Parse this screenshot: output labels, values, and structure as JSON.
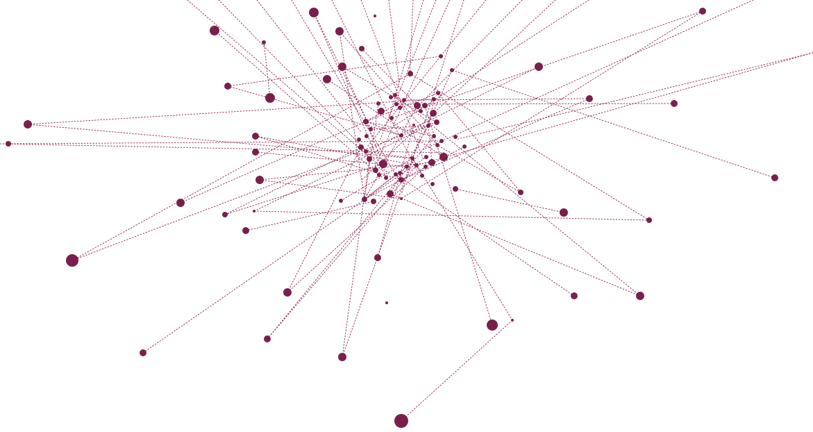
{
  "diagram": {
    "type": "network-graph",
    "style": "dotted radial links",
    "colors": {
      "node": "#7a1f4c",
      "link": "#9a3a62",
      "background": "#ffffff"
    },
    "node_count": 110
  }
}
